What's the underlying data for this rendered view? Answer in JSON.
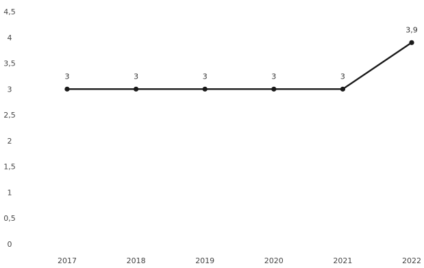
{
  "chart_data": {
    "type": "line",
    "x": [
      "2017",
      "2018",
      "2019",
      "2020",
      "2021",
      "2022"
    ],
    "series": [
      {
        "values": [
          3,
          3,
          3,
          3,
          3,
          3.9
        ],
        "data_labels": [
          "3",
          "3",
          "3",
          "3",
          "3",
          "3,9"
        ]
      }
    ],
    "ylim": [
      0,
      4.5
    ],
    "yticks": [
      0,
      0.5,
      1,
      1.5,
      2,
      2.5,
      3,
      3.5,
      4,
      4.5
    ],
    "ytick_labels": [
      "0",
      "0,5",
      "1",
      "1,5",
      "2",
      "2,5",
      "3",
      "3,5",
      "4",
      "4,5"
    ],
    "grid": false,
    "line_color": "#1a1a1a"
  }
}
